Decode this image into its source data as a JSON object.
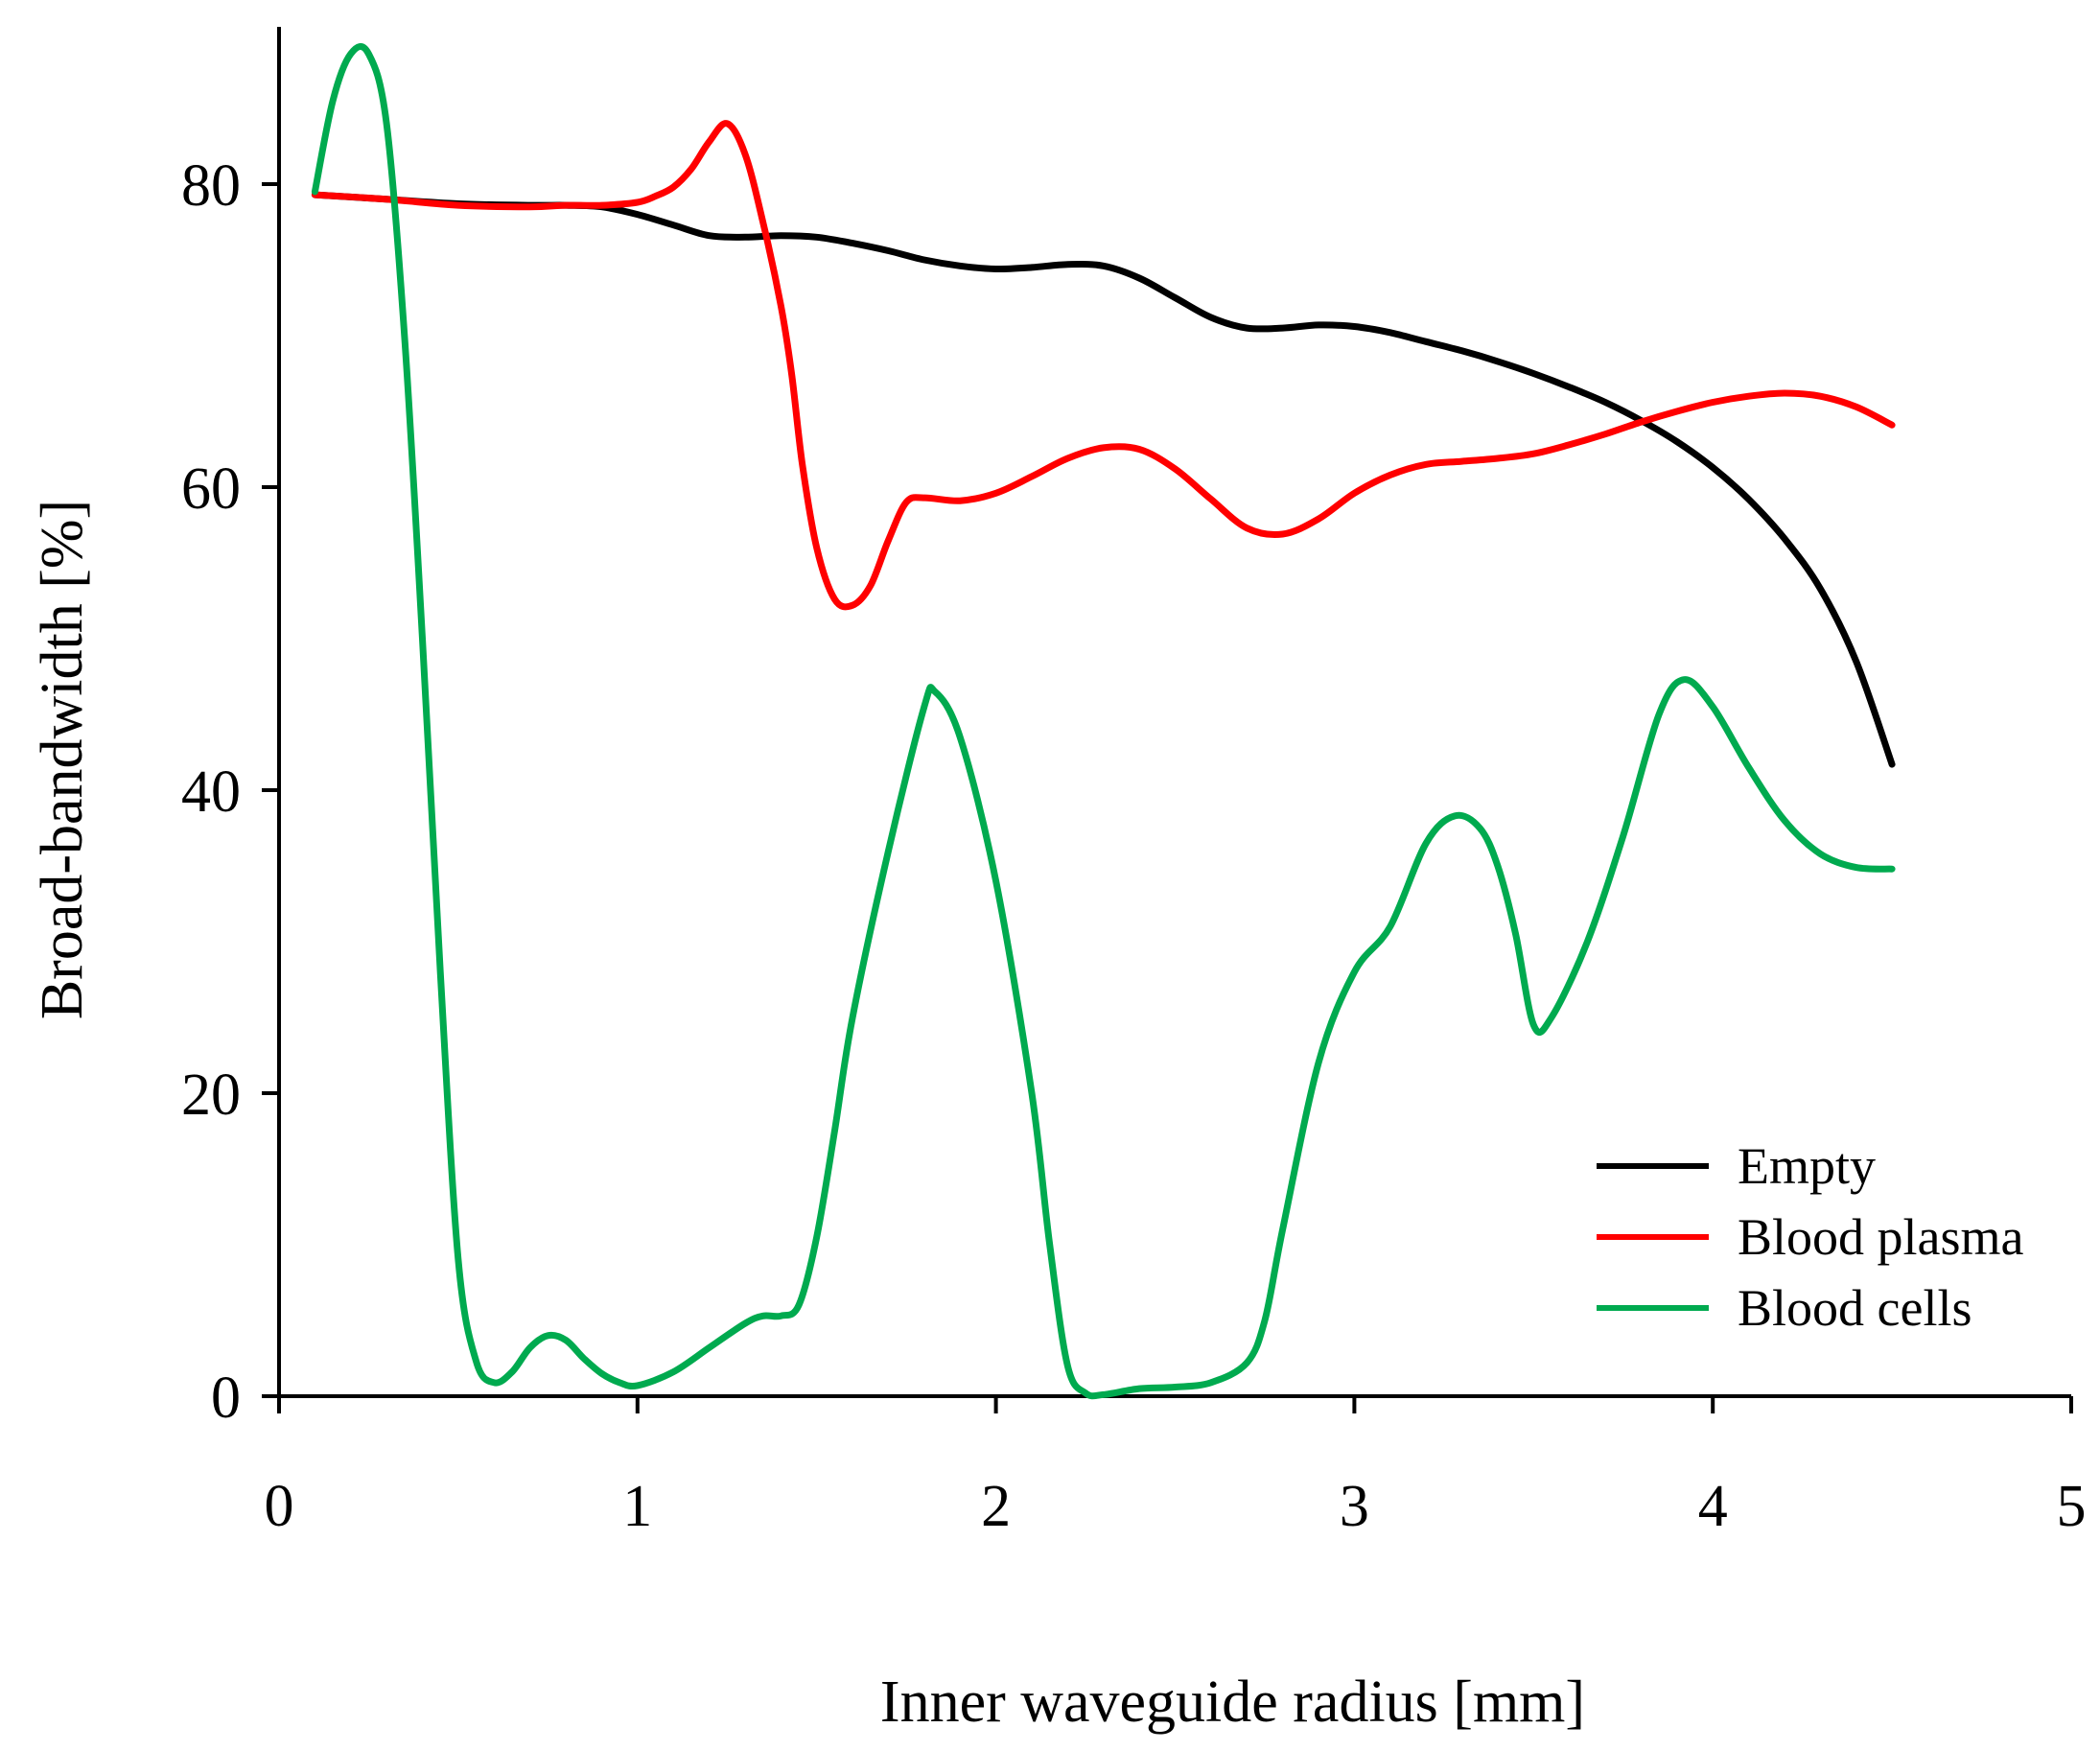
{
  "chart_data": {
    "type": "line",
    "title": "",
    "xlabel": "Inner waveguide radius  [mm]",
    "ylabel": "Broad-bandwidth [%]",
    "xlim": [
      0,
      5
    ],
    "ylim": [
      0,
      90
    ],
    "x_ticks": [
      0,
      1,
      2,
      3,
      4,
      5
    ],
    "y_ticks": [
      0,
      20,
      40,
      60,
      80
    ],
    "grid": false,
    "legend_position": "bottom-right",
    "series": [
      {
        "name": "Empty",
        "color": "#000000",
        "points": [
          [
            0.1,
            79.3
          ],
          [
            0.3,
            79.0
          ],
          [
            0.5,
            78.7
          ],
          [
            0.7,
            78.6
          ],
          [
            0.8,
            78.6
          ],
          [
            0.9,
            78.5
          ],
          [
            1.0,
            78.0
          ],
          [
            1.1,
            77.3
          ],
          [
            1.2,
            76.6
          ],
          [
            1.3,
            76.5
          ],
          [
            1.4,
            76.6
          ],
          [
            1.5,
            76.5
          ],
          [
            1.6,
            76.1
          ],
          [
            1.7,
            75.6
          ],
          [
            1.8,
            75.0
          ],
          [
            1.9,
            74.6
          ],
          [
            2.0,
            74.4
          ],
          [
            2.1,
            74.5
          ],
          [
            2.2,
            74.7
          ],
          [
            2.3,
            74.6
          ],
          [
            2.4,
            73.8
          ],
          [
            2.5,
            72.5
          ],
          [
            2.6,
            71.2
          ],
          [
            2.7,
            70.5
          ],
          [
            2.8,
            70.5
          ],
          [
            2.9,
            70.7
          ],
          [
            3.0,
            70.6
          ],
          [
            3.1,
            70.2
          ],
          [
            3.2,
            69.6
          ],
          [
            3.3,
            69.0
          ],
          [
            3.4,
            68.3
          ],
          [
            3.5,
            67.5
          ],
          [
            3.6,
            66.6
          ],
          [
            3.7,
            65.6
          ],
          [
            3.8,
            64.4
          ],
          [
            3.9,
            63.0
          ],
          [
            4.0,
            61.3
          ],
          [
            4.1,
            59.2
          ],
          [
            4.2,
            56.6
          ],
          [
            4.3,
            53.3
          ],
          [
            4.4,
            48.5
          ],
          [
            4.5,
            41.7
          ]
        ]
      },
      {
        "name": "Blood plasma",
        "color": "#ff0000",
        "points": [
          [
            0.1,
            79.3
          ],
          [
            0.3,
            79.0
          ],
          [
            0.5,
            78.6
          ],
          [
            0.7,
            78.5
          ],
          [
            0.8,
            78.6
          ],
          [
            0.9,
            78.6
          ],
          [
            1.0,
            78.8
          ],
          [
            1.05,
            79.2
          ],
          [
            1.1,
            79.8
          ],
          [
            1.15,
            81.0
          ],
          [
            1.2,
            82.8
          ],
          [
            1.25,
            84.0
          ],
          [
            1.3,
            82.0
          ],
          [
            1.35,
            77.5
          ],
          [
            1.4,
            72.0
          ],
          [
            1.43,
            67.5
          ],
          [
            1.46,
            61.5
          ],
          [
            1.5,
            56.0
          ],
          [
            1.55,
            52.6
          ],
          [
            1.6,
            52.2
          ],
          [
            1.65,
            53.5
          ],
          [
            1.7,
            56.5
          ],
          [
            1.75,
            59.0
          ],
          [
            1.8,
            59.3
          ],
          [
            1.9,
            59.1
          ],
          [
            2.0,
            59.6
          ],
          [
            2.1,
            60.7
          ],
          [
            2.2,
            61.9
          ],
          [
            2.3,
            62.6
          ],
          [
            2.4,
            62.5
          ],
          [
            2.5,
            61.2
          ],
          [
            2.6,
            59.2
          ],
          [
            2.7,
            57.3
          ],
          [
            2.8,
            56.9
          ],
          [
            2.9,
            57.9
          ],
          [
            3.0,
            59.6
          ],
          [
            3.1,
            60.8
          ],
          [
            3.2,
            61.5
          ],
          [
            3.3,
            61.7
          ],
          [
            3.4,
            61.9
          ],
          [
            3.5,
            62.2
          ],
          [
            3.6,
            62.8
          ],
          [
            3.7,
            63.5
          ],
          [
            3.8,
            64.3
          ],
          [
            3.9,
            65.0
          ],
          [
            4.0,
            65.6
          ],
          [
            4.1,
            66.0
          ],
          [
            4.2,
            66.2
          ],
          [
            4.3,
            66.0
          ],
          [
            4.4,
            65.3
          ],
          [
            4.5,
            64.1
          ]
        ]
      },
      {
        "name": "Blood cells",
        "color": "#00aa4f",
        "points": [
          [
            0.1,
            79.5
          ],
          [
            0.15,
            85.5
          ],
          [
            0.2,
            88.6
          ],
          [
            0.25,
            88.6
          ],
          [
            0.3,
            84.0
          ],
          [
            0.35,
            70.0
          ],
          [
            0.4,
            50.0
          ],
          [
            0.45,
            28.0
          ],
          [
            0.5,
            9.0
          ],
          [
            0.55,
            2.3
          ],
          [
            0.6,
            0.9
          ],
          [
            0.65,
            1.6
          ],
          [
            0.7,
            3.2
          ],
          [
            0.75,
            4.0
          ],
          [
            0.8,
            3.7
          ],
          [
            0.85,
            2.5
          ],
          [
            0.9,
            1.5
          ],
          [
            0.95,
            0.9
          ],
          [
            1.0,
            0.7
          ],
          [
            1.1,
            1.6
          ],
          [
            1.2,
            3.2
          ],
          [
            1.3,
            4.8
          ],
          [
            1.35,
            5.3
          ],
          [
            1.4,
            5.3
          ],
          [
            1.45,
            6.0
          ],
          [
            1.5,
            10.5
          ],
          [
            1.55,
            17.5
          ],
          [
            1.6,
            25.0
          ],
          [
            1.7,
            36.0
          ],
          [
            1.8,
            45.5
          ],
          [
            1.83,
            46.5
          ],
          [
            1.9,
            43.5
          ],
          [
            2.0,
            34.0
          ],
          [
            2.1,
            20.0
          ],
          [
            2.15,
            10.0
          ],
          [
            2.2,
            2.0
          ],
          [
            2.25,
            0.2
          ],
          [
            2.3,
            0.1
          ],
          [
            2.4,
            0.5
          ],
          [
            2.5,
            0.6
          ],
          [
            2.6,
            0.9
          ],
          [
            2.7,
            2.2
          ],
          [
            2.75,
            5.0
          ],
          [
            2.8,
            11.0
          ],
          [
            2.9,
            22.0
          ],
          [
            3.0,
            28.0
          ],
          [
            3.1,
            31.0
          ],
          [
            3.2,
            36.5
          ],
          [
            3.28,
            38.3
          ],
          [
            3.35,
            37.5
          ],
          [
            3.4,
            35.0
          ],
          [
            3.45,
            30.5
          ],
          [
            3.5,
            24.5
          ],
          [
            3.55,
            25.0
          ],
          [
            3.65,
            30.0
          ],
          [
            3.75,
            37.0
          ],
          [
            3.85,
            45.0
          ],
          [
            3.92,
            47.3
          ],
          [
            4.0,
            45.5
          ],
          [
            4.1,
            41.5
          ],
          [
            4.2,
            38.0
          ],
          [
            4.3,
            35.8
          ],
          [
            4.4,
            34.9
          ],
          [
            4.5,
            34.8
          ]
        ]
      }
    ]
  }
}
